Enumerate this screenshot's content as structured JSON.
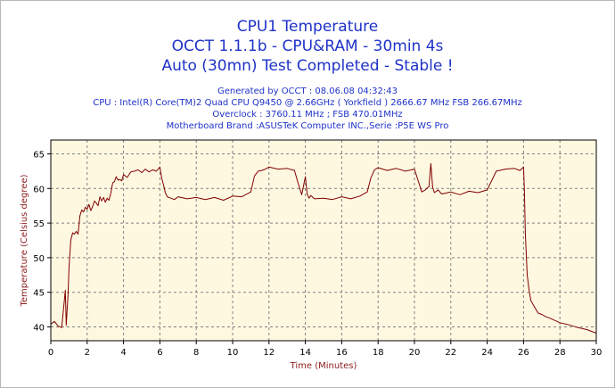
{
  "titles": [
    "CPU1 Temperature",
    "OCCT 1.1.1b - CPU&RAM - 30min 4s",
    "Auto (30mn) Test Completed - Stable !"
  ],
  "info": [
    "Generated by OCCT : 08.06.08 04:32:43",
    "CPU : Intel(R) Core(TM)2 Quad CPU Q9450 @ 2.66GHz ( Yorkfield ) 2666.67 MHz FSB 266.67MHz",
    "Overclock : 3760.11 MHz ; FSB 470.01MHz",
    "Motherboard Brand :ASUSTeK Computer INC.,Serie :P5E WS Pro"
  ],
  "colors": {
    "title": "#1e32c8",
    "plot_background": "#fff8e1",
    "grid": "#808080",
    "line": "#800000",
    "axis_title": "#8b1a1a"
  },
  "chart_data": {
    "type": "line",
    "xlabel": "Time (Minutes)",
    "ylabel": "Temperature (Celsius degree)",
    "xlim": [
      0,
      30
    ],
    "ylim": [
      38,
      67
    ],
    "xticks": [
      "0",
      "2",
      "4",
      "6",
      "8",
      "10",
      "12",
      "14",
      "16",
      "18",
      "20",
      "22",
      "24",
      "26",
      "28",
      "30"
    ],
    "yticks": [
      "40",
      "45",
      "50",
      "55",
      "60",
      "65"
    ],
    "grid": true,
    "series": [
      {
        "x": [
          0,
          0.2,
          0.4,
          0.6,
          0.8,
          0.85,
          0.95,
          1.0,
          1.05,
          1.1,
          1.2,
          1.3,
          1.4,
          1.5,
          1.6,
          1.7,
          1.8,
          1.9,
          2.0,
          2.1,
          2.2,
          2.3,
          2.4,
          2.5,
          2.6,
          2.7,
          2.8,
          2.9,
          3.0,
          3.1,
          3.2,
          3.3,
          3.4,
          3.5,
          3.6,
          3.7,
          3.8,
          3.9,
          4.0,
          4.2,
          4.4,
          4.6,
          4.8,
          5.0,
          5.2,
          5.4,
          5.6,
          5.8,
          6.0,
          6.1,
          6.2,
          6.3,
          6.4,
          6.6,
          6.8,
          7.0,
          7.5,
          8.0,
          8.5,
          9.0,
          9.5,
          10.0,
          10.5,
          11.0,
          11.2,
          11.4,
          11.6,
          11.8,
          12.0,
          12.5,
          13.0,
          13.4,
          13.6,
          13.8,
          14.0,
          14.1,
          14.2,
          14.3,
          14.5,
          15.0,
          15.5,
          16.0,
          16.5,
          17.0,
          17.4,
          17.6,
          17.8,
          18.0,
          18.5,
          19.0,
          19.5,
          20.0,
          20.4,
          20.6,
          20.8,
          20.9,
          21.0,
          21.1,
          21.3,
          21.5,
          22.0,
          22.5,
          23.0,
          23.5,
          24.0,
          24.5,
          25.0,
          25.5,
          25.8,
          26.0,
          26.05,
          26.1,
          26.2,
          26.3,
          26.4,
          26.6,
          26.8,
          27.0,
          27.2,
          27.5,
          28.0,
          28.5,
          29.0,
          29.5,
          30.0
        ],
        "values": [
          40.4,
          40.8,
          40.1,
          39.9,
          45.3,
          40.2,
          44.8,
          48.5,
          50.5,
          52.5,
          53.6,
          53.4,
          53.8,
          53.4,
          56.0,
          56.9,
          56.6,
          57.3,
          57.0,
          57.7,
          56.8,
          57.4,
          58.2,
          57.9,
          57.5,
          58.8,
          58.2,
          58.7,
          58.0,
          58.6,
          58.3,
          59.3,
          60.8,
          61.0,
          61.7,
          61.2,
          61.3,
          61.1,
          62.0,
          61.6,
          62.4,
          62.5,
          62.7,
          62.3,
          62.8,
          62.4,
          62.7,
          62.5,
          63.1,
          61.5,
          60.5,
          59.4,
          58.8,
          58.6,
          58.4,
          58.8,
          58.5,
          58.7,
          58.4,
          58.7,
          58.3,
          58.9,
          58.8,
          59.5,
          61.8,
          62.5,
          62.6,
          62.8,
          63.1,
          62.8,
          62.9,
          62.6,
          60.8,
          59.1,
          61.7,
          59.2,
          58.6,
          59.0,
          58.5,
          58.6,
          58.4,
          58.8,
          58.5,
          58.9,
          59.5,
          61.5,
          62.7,
          63.0,
          62.6,
          62.9,
          62.5,
          62.8,
          59.5,
          59.8,
          60.3,
          63.6,
          60.2,
          59.4,
          59.8,
          59.2,
          59.5,
          59.1,
          59.6,
          59.4,
          59.8,
          62.5,
          62.8,
          62.9,
          62.6,
          63.1,
          59.5,
          53.5,
          47.5,
          45.4,
          43.8,
          42.9,
          42.0,
          41.8,
          41.5,
          41.2,
          40.6,
          40.3,
          39.9,
          39.6,
          39.1
        ]
      }
    ]
  }
}
